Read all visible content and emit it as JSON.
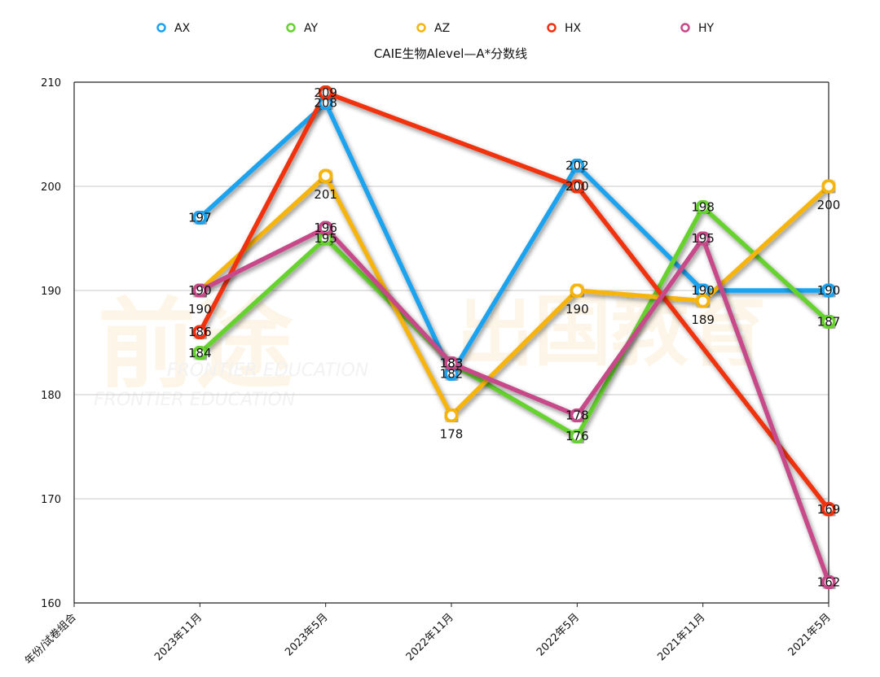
{
  "chart_data": {
    "type": "line",
    "title": "CAIE生物Alevel—A*分数线",
    "xlabel": "",
    "ylabel": "",
    "categories": [
      "年份/试卷组合",
      "2023年11月",
      "2023年5月",
      "2022年11月",
      "2022年5月",
      "2021年11月",
      "2021年5月"
    ],
    "ylim": [
      160,
      210
    ],
    "yticks": [
      160,
      170,
      180,
      190,
      200,
      210
    ],
    "grid": true,
    "legend_position": "top",
    "series": [
      {
        "name": "AX",
        "color": "#1aa3f0",
        "values": [
          null,
          197,
          208,
          182,
          202,
          190,
          190
        ]
      },
      {
        "name": "AY",
        "color": "#66d22e",
        "values": [
          null,
          184,
          195,
          183,
          176,
          198,
          187
        ]
      },
      {
        "name": "AZ",
        "color": "#f6b40e",
        "values": [
          null,
          190,
          201,
          178,
          190,
          189,
          200
        ]
      },
      {
        "name": "HX",
        "color": "#f2300f",
        "values": [
          null,
          186,
          209,
          null,
          200,
          null,
          169
        ]
      },
      {
        "name": "HY",
        "color": "#c8488a",
        "values": [
          null,
          190,
          196,
          183,
          178,
          195,
          162
        ]
      }
    ]
  },
  "watermark": {
    "brand_cn_left": "前途",
    "brand_cn_right": "出国教育",
    "brand_en": "FRONTIER EDUCATION"
  }
}
